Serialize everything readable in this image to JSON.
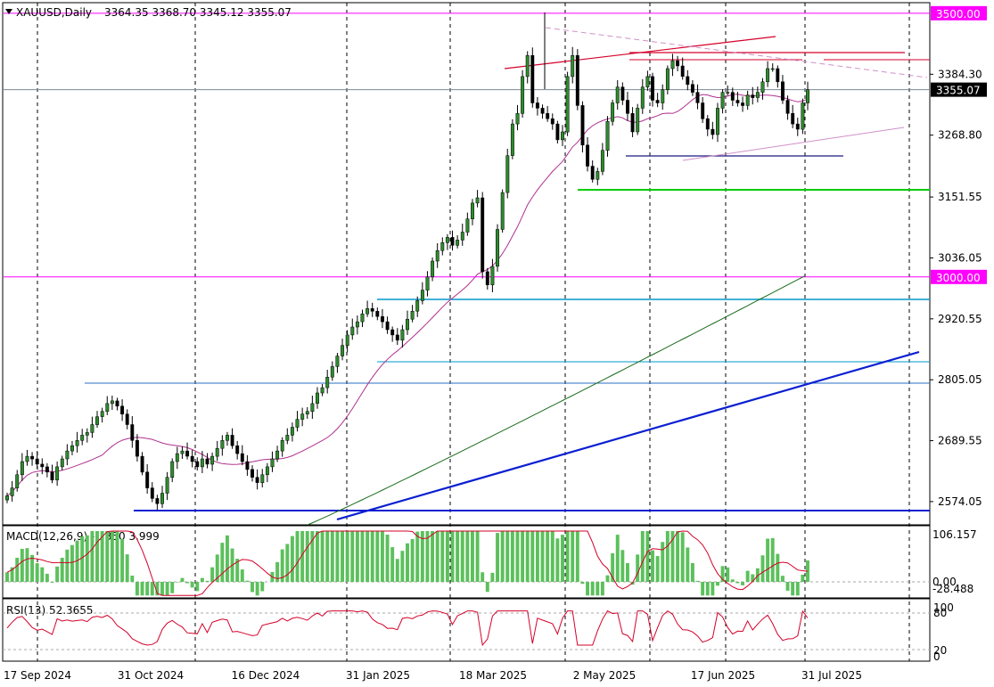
{
  "header": {
    "symbol_timeframe": "XAUUSD,Daily",
    "ohlc": "3364.35 3368.70 3345.12 3355.07"
  },
  "macd": {
    "label": "MACD(12,26,9) -1.350 3.999"
  },
  "rsi": {
    "label": "RSI(13) 52.3655"
  },
  "colors": {
    "bull": "#2e8b2e",
    "bear": "#000000",
    "ma_fast": "#b0308f",
    "ma_slow": "#1a6b1a",
    "trend_blue": "#0a1fd1",
    "magenta": "#ff00ff",
    "green_level": "#00cc00",
    "cyan_level": "#0099cc",
    "red_line": "#d4002a",
    "price_label_bg": "#000000"
  },
  "chart_data": [
    {
      "type": "candlestick",
      "symbol": "XAUUSD",
      "timeframe": "Daily",
      "x_tick_labels": [
        "17 Sep 2024",
        "31 Oct 2024",
        "16 Dec 2024",
        "31 Jan 2025",
        "18 Mar 2025",
        "2 May 2025",
        "17 Jun 2025",
        "31 Jul 2025"
      ],
      "y_tick_labels": [
        "3384.30",
        "3268.80",
        "3151.55",
        "3036.05",
        "2920.55",
        "2805.05",
        "2689.55",
        "2574.05"
      ],
      "ylim": [
        2530,
        3520
      ],
      "highlight_levels": [
        {
          "value": 3500.0,
          "label": "3500.00"
        },
        {
          "value": 3000.0,
          "label": "3000.00"
        }
      ],
      "current_price": {
        "value": 3355.07,
        "label": "3355.07"
      },
      "closes": [
        2585,
        2600,
        2625,
        2650,
        2660,
        2655,
        2645,
        2640,
        2630,
        2615,
        2640,
        2655,
        2670,
        2680,
        2690,
        2700,
        2705,
        2720,
        2735,
        2745,
        2760,
        2765,
        2755,
        2740,
        2720,
        2690,
        2660,
        2630,
        2600,
        2580,
        2570,
        2590,
        2620,
        2650,
        2665,
        2670,
        2660,
        2650,
        2640,
        2655,
        2645,
        2660,
        2675,
        2690,
        2700,
        2680,
        2665,
        2650,
        2635,
        2620,
        2610,
        2625,
        2640,
        2655,
        2670,
        2690,
        2700,
        2715,
        2730,
        2740,
        2745,
        2760,
        2780,
        2790,
        2810,
        2830,
        2850,
        2870,
        2890,
        2905,
        2915,
        2930,
        2940,
        2935,
        2925,
        2915,
        2900,
        2890,
        2880,
        2900,
        2920,
        2935,
        2955,
        2975,
        3000,
        3030,
        3050,
        3065,
        3075,
        3060,
        3070,
        3085,
        3110,
        3140,
        3150,
        3010,
        2985,
        3020,
        3090,
        3160,
        3230,
        3290,
        3310,
        3380,
        3420,
        3330,
        3320,
        3310,
        3300,
        3290,
        3260,
        3275,
        3380,
        3420,
        3325,
        3250,
        3210,
        3185,
        3200,
        3240,
        3295,
        3330,
        3360,
        3335,
        3310,
        3275,
        3320,
        3360,
        3380,
        3335,
        3330,
        3355,
        3395,
        3410,
        3400,
        3380,
        3365,
        3350,
        3330,
        3300,
        3280,
        3270,
        3320,
        3350,
        3350,
        3335,
        3330,
        3325,
        3345,
        3340,
        3350,
        3370,
        3395,
        3395,
        3370,
        3335,
        3310,
        3290,
        3280,
        3330,
        3355
      ],
      "macd_range": [
        -28.488,
        106.157
      ],
      "macd_ticks": [
        "106.157",
        "0.00",
        "-28.488"
      ],
      "rsi_ticks": [
        "100",
        "80",
        "20",
        "0"
      ]
    }
  ]
}
